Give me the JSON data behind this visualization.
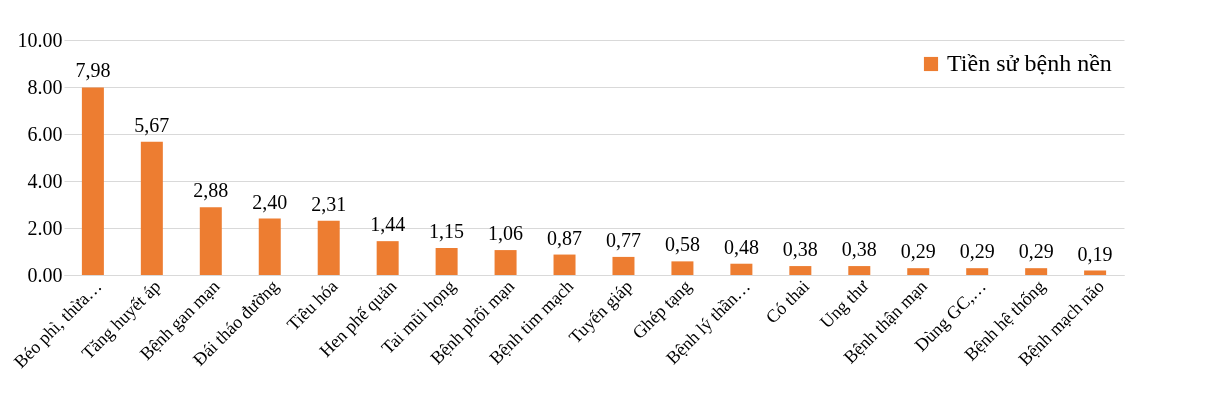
{
  "chart_data": {
    "type": "bar",
    "categories": [
      "Béo phì, thừa…",
      "Tăng huyết áp",
      "Bệnh gan mạn",
      "Đái tháo đường",
      "Tiêu hóa",
      "Hen phế quản",
      "Tai mũi họng",
      "Bệnh phổi mạn",
      "Bệnh tim mạch",
      "Tuyến giáp",
      "Ghép tạng",
      "Bệnh lý thần…",
      "Có thai",
      "Ung thư",
      "Bệnh thận mạn",
      "Dùng GC,…",
      "Bệnh hệ thống",
      "Bệnh mạch não"
    ],
    "series": [
      {
        "name": "Tiền sử bệnh nền",
        "color": "#ed7d31",
        "values": [
          7.98,
          5.67,
          2.88,
          2.4,
          2.31,
          1.44,
          1.15,
          1.06,
          0.87,
          0.77,
          0.58,
          0.48,
          0.38,
          0.38,
          0.29,
          0.29,
          0.29,
          0.19
        ],
        "value_labels": [
          "7,98",
          "5,67",
          "2,88",
          "2,40",
          "2,31",
          "1,44",
          "1,15",
          "1,06",
          "0,87",
          "0,77",
          "0,58",
          "0,48",
          "0,38",
          "0,38",
          "0,29",
          "0,29",
          "0,29",
          "0,19"
        ]
      }
    ],
    "ylim": [
      0,
      10
    ],
    "yticks": [
      {
        "value": 0,
        "label": "0.00"
      },
      {
        "value": 2,
        "label": "2.00"
      },
      {
        "value": 4,
        "label": "4.00"
      },
      {
        "value": 6,
        "label": "6.00"
      },
      {
        "value": 8,
        "label": "8.00"
      },
      {
        "value": 10,
        "label": "10.00"
      }
    ],
    "grid": "y",
    "legend": "top right"
  }
}
